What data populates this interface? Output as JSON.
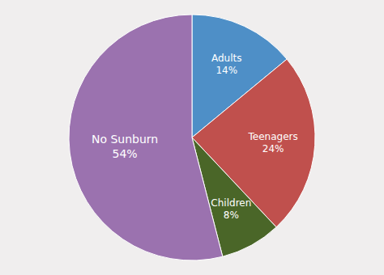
{
  "chart_data": {
    "type": "pie",
    "categories": [
      "Adults",
      "Teenagers",
      "Children",
      "No Sunburn"
    ],
    "values": [
      14,
      24,
      8,
      54
    ],
    "value_labels": [
      "14%",
      "24%",
      "8%",
      "54%"
    ],
    "colors": [
      "#4e8fc7",
      "#c0504d",
      "#4a6628",
      "#9b72af"
    ],
    "data_labels": true
  }
}
